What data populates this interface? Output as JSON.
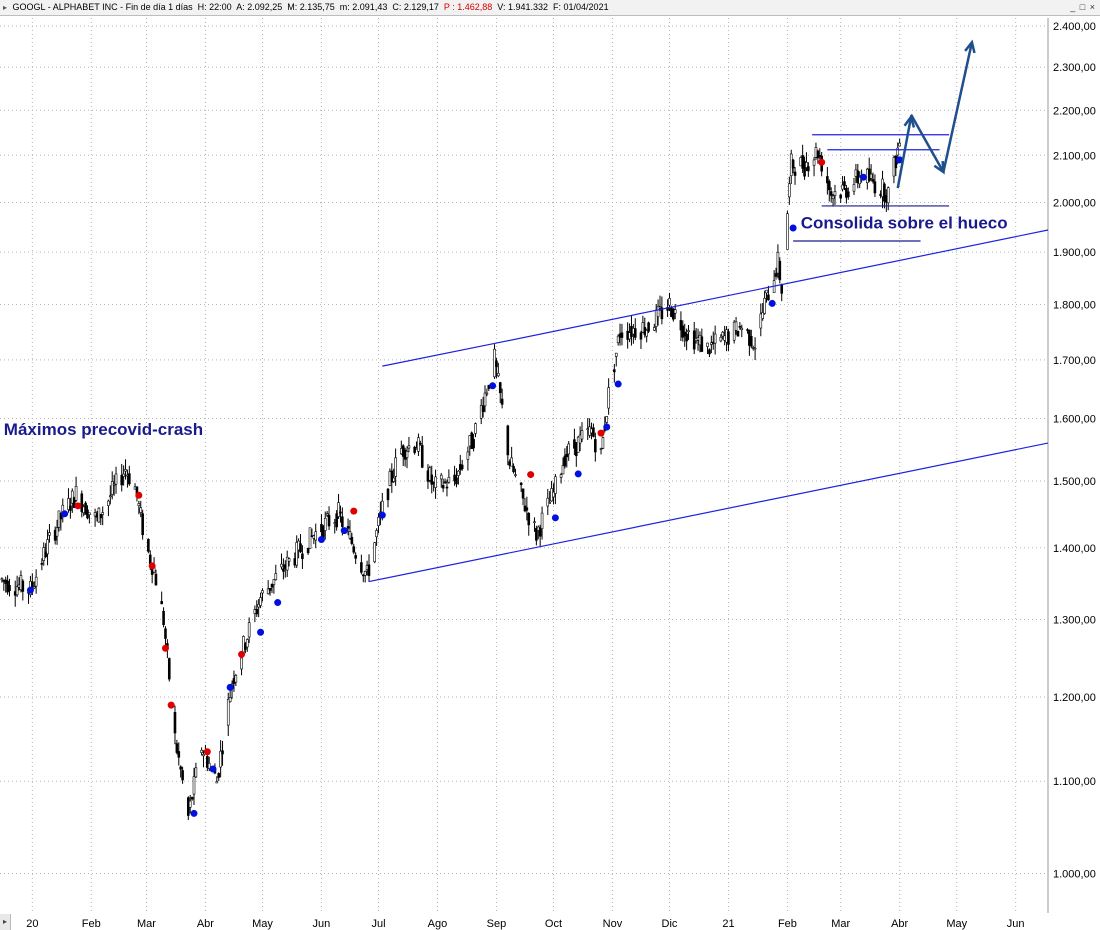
{
  "header": {
    "symbol": "GOOGL",
    "name": "ALPHABET INC",
    "period": "Fin de día 1 días",
    "h": "H: 22:00",
    "a": "A: 2.092,25",
    "m": "M: 2.135,75",
    "mn": "m: 2.091,43",
    "c": "C: 2.129,17",
    "p": "P : 1.462,88",
    "v": "V: 1.941.332",
    "f": "F: 01/04/2021",
    "window_controls": "_ □ ×"
  },
  "chart_data": {
    "type": "candlestick",
    "title": "",
    "y_scale": "log",
    "ylim": [
      960,
      2420
    ],
    "y_ticks": [
      "1.000,00",
      "1.100,00",
      "1.200,00",
      "1.300,00",
      "1.400,00",
      "1.500,00",
      "1.600,00",
      "1.700,00",
      "1.800,00",
      "1.900,00",
      "2.000,00",
      "2.100,00",
      "2.200,00",
      "2.300,00",
      "2.400,00"
    ],
    "y_tick_values": [
      1000,
      1100,
      1200,
      1300,
      1400,
      1500,
      1600,
      1700,
      1800,
      1900,
      2000,
      2100,
      2200,
      2300,
      2400
    ],
    "x_range": [
      "2019-12-15",
      "2021-06-18"
    ],
    "x_ticks": [
      {
        "label": "20",
        "date": "2020-01-01"
      },
      {
        "label": "Feb",
        "date": "2020-02-01"
      },
      {
        "label": "Mar",
        "date": "2020-03-01"
      },
      {
        "label": "Abr",
        "date": "2020-04-01"
      },
      {
        "label": "May",
        "date": "2020-05-01"
      },
      {
        "label": "Jun",
        "date": "2020-06-01"
      },
      {
        "label": "Jul",
        "date": "2020-07-01"
      },
      {
        "label": "Ago",
        "date": "2020-08-01"
      },
      {
        "label": "Sep",
        "date": "2020-09-01"
      },
      {
        "label": "Oct",
        "date": "2020-10-01"
      },
      {
        "label": "Nov",
        "date": "2020-11-01"
      },
      {
        "label": "Dic",
        "date": "2020-12-01"
      },
      {
        "label": "21",
        "date": "2021-01-01"
      },
      {
        "label": "Feb",
        "date": "2021-02-01"
      },
      {
        "label": "Mar",
        "date": "2021-03-01"
      },
      {
        "label": "Abr",
        "date": "2021-04-01"
      },
      {
        "label": "May",
        "date": "2021-05-01"
      },
      {
        "label": "Jun",
        "date": "2021-06-01"
      }
    ],
    "grid": true,
    "price_path": [
      [
        "2019-12-15",
        1355
      ],
      [
        "2019-12-31",
        1340
      ],
      [
        "2020-01-10",
        1410
      ],
      [
        "2020-01-17",
        1450
      ],
      [
        "2020-01-24",
        1480
      ],
      [
        "2020-02-04",
        1440
      ],
      [
        "2020-02-19",
        1520
      ],
      [
        "2020-02-24",
        1490
      ],
      [
        "2020-03-01",
        1400
      ],
      [
        "2020-03-05",
        1370
      ],
      [
        "2020-03-10",
        1300
      ],
      [
        "2020-03-16",
        1150
      ],
      [
        "2020-03-23",
        1060
      ],
      [
        "2020-03-30",
        1140
      ],
      [
        "2020-04-07",
        1100
      ],
      [
        "2020-04-15",
        1220
      ],
      [
        "2020-04-30",
        1330
      ],
      [
        "2020-05-15",
        1380
      ],
      [
        "2020-06-01",
        1430
      ],
      [
        "2020-06-10",
        1450
      ],
      [
        "2020-06-25",
        1360
      ],
      [
        "2020-07-05",
        1480
      ],
      [
        "2020-07-13",
        1550
      ],
      [
        "2020-07-21",
        1560
      ],
      [
        "2020-07-30",
        1490
      ],
      [
        "2020-08-10",
        1500
      ],
      [
        "2020-08-20",
        1570
      ],
      [
        "2020-08-31",
        1700
      ],
      [
        "2020-09-08",
        1530
      ],
      [
        "2020-09-15",
        1470
      ],
      [
        "2020-09-22",
        1420
      ],
      [
        "2020-10-01",
        1480
      ],
      [
        "2020-10-07",
        1540
      ],
      [
        "2020-10-14",
        1560
      ],
      [
        "2020-10-21",
        1580
      ],
      [
        "2020-10-26",
        1540
      ],
      [
        "2020-10-30",
        1640
      ],
      [
        "2020-11-05",
        1750
      ],
      [
        "2020-11-20",
        1760
      ],
      [
        "2020-12-01",
        1800
      ],
      [
        "2020-12-10",
        1750
      ],
      [
        "2020-12-21",
        1720
      ],
      [
        "2020-12-31",
        1740
      ],
      [
        "2021-01-08",
        1760
      ],
      [
        "2021-01-15",
        1730
      ],
      [
        "2021-01-20",
        1800
      ],
      [
        "2021-01-27",
        1880
      ],
      [
        "2021-01-29",
        1830
      ],
      [
        "2021-02-03",
        2080
      ],
      [
        "2021-02-10",
        2080
      ],
      [
        "2021-02-17",
        2110
      ],
      [
        "2021-02-24",
        2020
      ],
      [
        "2021-03-05",
        2030
      ],
      [
        "2021-03-12",
        2060
      ],
      [
        "2021-03-19",
        2040
      ],
      [
        "2021-03-26",
        2020
      ],
      [
        "2021-04-01",
        2129
      ]
    ],
    "markers": [
      {
        "date": "2019-12-31",
        "price": 1340,
        "color": "blue"
      },
      {
        "date": "2020-01-18",
        "price": 1450,
        "color": "blue"
      },
      {
        "date": "2020-01-25",
        "price": 1462,
        "color": "red"
      },
      {
        "date": "2020-02-26",
        "price": 1478,
        "color": "red"
      },
      {
        "date": "2020-03-04",
        "price": 1374,
        "color": "red"
      },
      {
        "date": "2020-03-11",
        "price": 1262,
        "color": "red"
      },
      {
        "date": "2020-03-14",
        "price": 1190,
        "color": "red"
      },
      {
        "date": "2020-03-26",
        "price": 1064,
        "color": "blue"
      },
      {
        "date": "2020-04-02",
        "price": 1134,
        "color": "red"
      },
      {
        "date": "2020-04-05",
        "price": 1114,
        "color": "blue"
      },
      {
        "date": "2020-04-14",
        "price": 1212,
        "color": "blue"
      },
      {
        "date": "2020-04-20",
        "price": 1254,
        "color": "red"
      },
      {
        "date": "2020-04-30",
        "price": 1283,
        "color": "blue"
      },
      {
        "date": "2020-05-09",
        "price": 1323,
        "color": "blue"
      },
      {
        "date": "2020-06-01",
        "price": 1412,
        "color": "blue"
      },
      {
        "date": "2020-06-18",
        "price": 1454,
        "color": "red"
      },
      {
        "date": "2020-06-13",
        "price": 1425,
        "color": "blue"
      },
      {
        "date": "2020-07-03",
        "price": 1448,
        "color": "blue"
      },
      {
        "date": "2020-08-30",
        "price": 1655,
        "color": "blue"
      },
      {
        "date": "2020-09-19",
        "price": 1510,
        "color": "red"
      },
      {
        "date": "2020-10-02",
        "price": 1444,
        "color": "blue"
      },
      {
        "date": "2020-10-14",
        "price": 1511,
        "color": "blue"
      },
      {
        "date": "2020-10-26",
        "price": 1576,
        "color": "red"
      },
      {
        "date": "2020-10-29",
        "price": 1586,
        "color": "blue"
      },
      {
        "date": "2020-11-04",
        "price": 1658,
        "color": "blue"
      },
      {
        "date": "2021-01-24",
        "price": 1802,
        "color": "blue"
      },
      {
        "date": "2021-02-04",
        "price": 1948,
        "color": "blue"
      },
      {
        "date": "2021-02-19",
        "price": 2085,
        "color": "red"
      },
      {
        "date": "2021-03-13",
        "price": 2053,
        "color": "blue"
      },
      {
        "date": "2021-04-01",
        "price": 2090,
        "color": "blue"
      }
    ],
    "trendlines": [
      {
        "from": [
          "2020-07-03",
          1689
        ],
        "to": [
          "2020-08-31",
          1729
        ],
        "color": "#1e22e0"
      },
      {
        "from": [
          "2020-08-31",
          1729
        ],
        "to": [
          "2021-06-18",
          1944
        ],
        "color": "#1e22e0"
      },
      {
        "from": [
          "2020-06-26",
          1352
        ],
        "to": [
          "2021-06-18",
          1560
        ],
        "color": "#1e22e0"
      },
      {
        "from": [
          "2021-02-14",
          2145
        ],
        "to": [
          "2021-04-27",
          2145
        ],
        "color": "#1e22e0"
      },
      {
        "from": [
          "2021-02-22",
          2112
        ],
        "to": [
          "2021-04-22",
          2112
        ],
        "color": "#1e22e0"
      },
      {
        "from": [
          "2021-02-19",
          1993
        ],
        "to": [
          "2021-04-27",
          1993
        ],
        "color": "#1a1a8c"
      },
      {
        "from": [
          "2021-02-04",
          1922
        ],
        "to": [
          "2021-04-12",
          1922
        ],
        "color": "#1a1a8c"
      }
    ],
    "projection_arrows": [
      [
        [
          "2021-03-31",
          2030
        ],
        [
          "2021-04-07",
          2185
        ]
      ],
      [
        [
          "2021-04-07",
          2190
        ],
        [
          "2021-04-24",
          2064
        ]
      ],
      [
        [
          "2021-04-24",
          2064
        ],
        [
          "2021-05-09",
          2360
        ]
      ]
    ],
    "annotations": [
      {
        "text": "Máximos precovid-crash",
        "date": "2019-12-17",
        "price": 1573
      },
      {
        "text": "Consolida sobre el hueco",
        "date": "2021-02-08",
        "price": 1947
      }
    ]
  }
}
